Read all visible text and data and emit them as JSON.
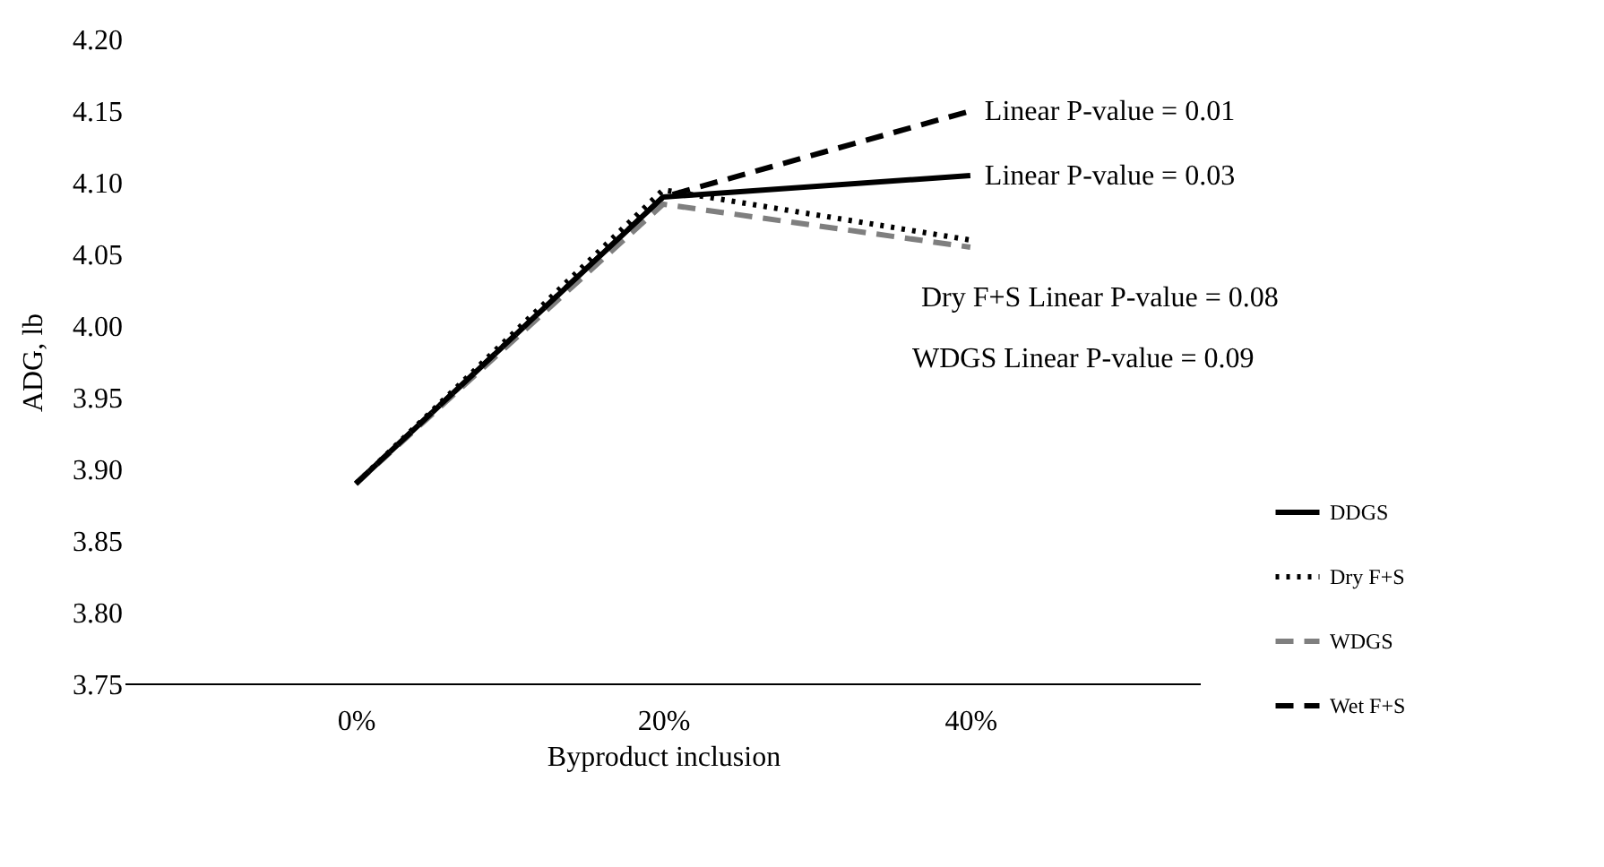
{
  "chart_data": {
    "type": "line",
    "xlabel": "Byproduct inclusion",
    "ylabel": "ADG, lb",
    "categories": [
      "0%",
      "20%",
      "40%"
    ],
    "series": [
      {
        "name": "DDGS",
        "color": "#000000",
        "line_style": "solid",
        "values": [
          3.89,
          4.09,
          4.105
        ]
      },
      {
        "name": "Dry F+S",
        "color": "#000000",
        "line_style": "dotted",
        "values": [
          3.89,
          4.095,
          4.06
        ]
      },
      {
        "name": "WDGS",
        "color": "#7f7f7f",
        "line_style": "dashed",
        "values": [
          3.89,
          4.085,
          4.055
        ]
      },
      {
        "name": "Wet F+S",
        "color": "#000000",
        "line_style": "dashed",
        "values": [
          3.89,
          4.09,
          4.15
        ]
      }
    ],
    "ylim": [
      3.75,
      4.2
    ],
    "yticks": [
      {
        "value": 3.75,
        "label": "3.75"
      },
      {
        "value": 3.8,
        "label": "3.80"
      },
      {
        "value": 3.85,
        "label": "3.85"
      },
      {
        "value": 3.9,
        "label": "3.90"
      },
      {
        "value": 3.95,
        "label": "3.95"
      },
      {
        "value": 4.0,
        "label": "4.00"
      },
      {
        "value": 4.05,
        "label": "4.05"
      },
      {
        "value": 4.1,
        "label": "4.10"
      },
      {
        "value": 4.15,
        "label": "4.15"
      },
      {
        "value": 4.2,
        "label": "4.20"
      }
    ],
    "annotations": [
      {
        "text": "Linear P-value =  0.01",
        "x": "40%",
        "y": 4.15
      },
      {
        "text": "Linear P-value = 0.03",
        "x": "40%",
        "y": 4.105
      },
      "Dry F+S Linear P-value = 0.08",
      "WDGS Linear P-value = 0.09"
    ],
    "grid": false,
    "legend": "bottom right",
    "marker": "none"
  }
}
